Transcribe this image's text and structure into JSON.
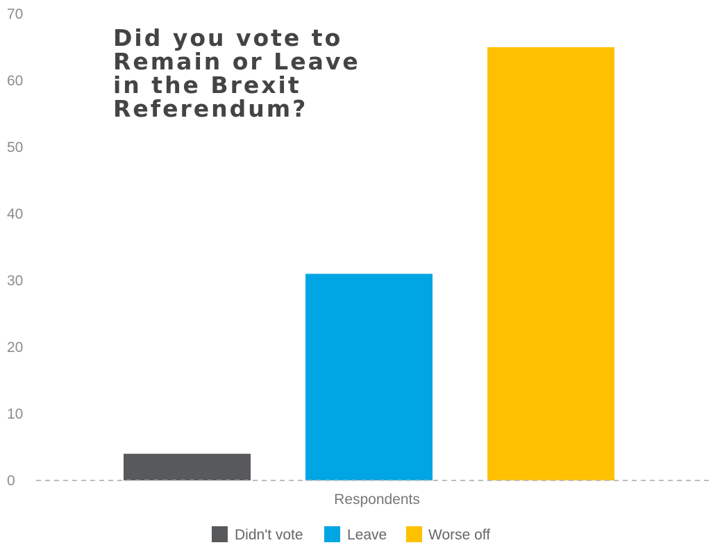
{
  "chart_data": {
    "type": "bar",
    "title_lines": [
      "Did you vote to",
      "Remain or Leave",
      "in the Brexit",
      "Referendum?"
    ],
    "categories": [
      "Respondents"
    ],
    "series": [
      {
        "name": "Didn't vote",
        "values": [
          4
        ],
        "color": "#58595b"
      },
      {
        "name": "Leave",
        "values": [
          31
        ],
        "color": "#00a5e3"
      },
      {
        "name": "Worse off",
        "values": [
          65
        ],
        "color": "#ffc000"
      }
    ],
    "ylim": [
      0,
      70
    ],
    "yticks": [
      0,
      10,
      20,
      30,
      40,
      50,
      60,
      70
    ],
    "grid": false,
    "legend_position": "bottom"
  }
}
